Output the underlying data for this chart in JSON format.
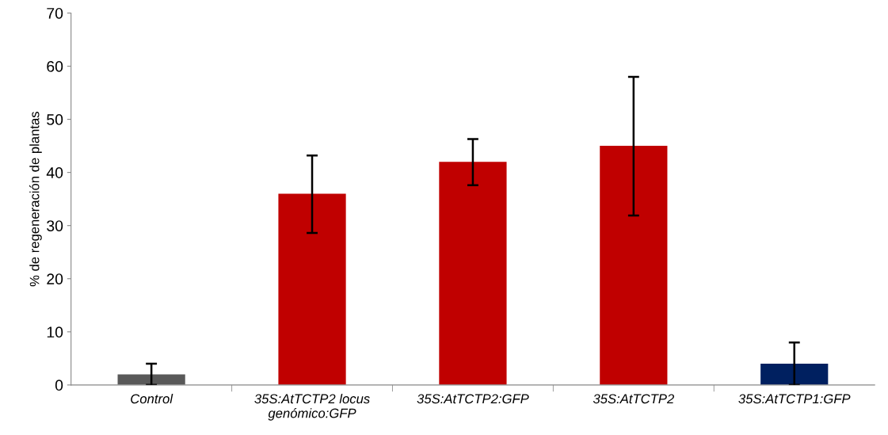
{
  "chart_data": {
    "type": "bar",
    "ylabel": "% de regeneración de plantas",
    "categories": [
      "Control",
      "35S:AtTCTP2 locus\ngenómico:GFP",
      "35S:AtTCTP2:GFP",
      "35S:AtTCTP2",
      "35S:AtTCTP1:GFP"
    ],
    "values": [
      2,
      36,
      42,
      45,
      4
    ],
    "colors": [
      "#595959",
      "#c00000",
      "#c00000",
      "#c00000",
      "#002060"
    ],
    "errors": [
      [
        0,
        4
      ],
      [
        28.6,
        43.2
      ],
      [
        37.6,
        46.3
      ],
      [
        31.9,
        58
      ],
      [
        0,
        8
      ]
    ],
    "ylim": [
      0,
      70
    ],
    "yticks": [
      0,
      10,
      20,
      30,
      40,
      50,
      60,
      70
    ],
    "grid": false,
    "legend": false
  }
}
